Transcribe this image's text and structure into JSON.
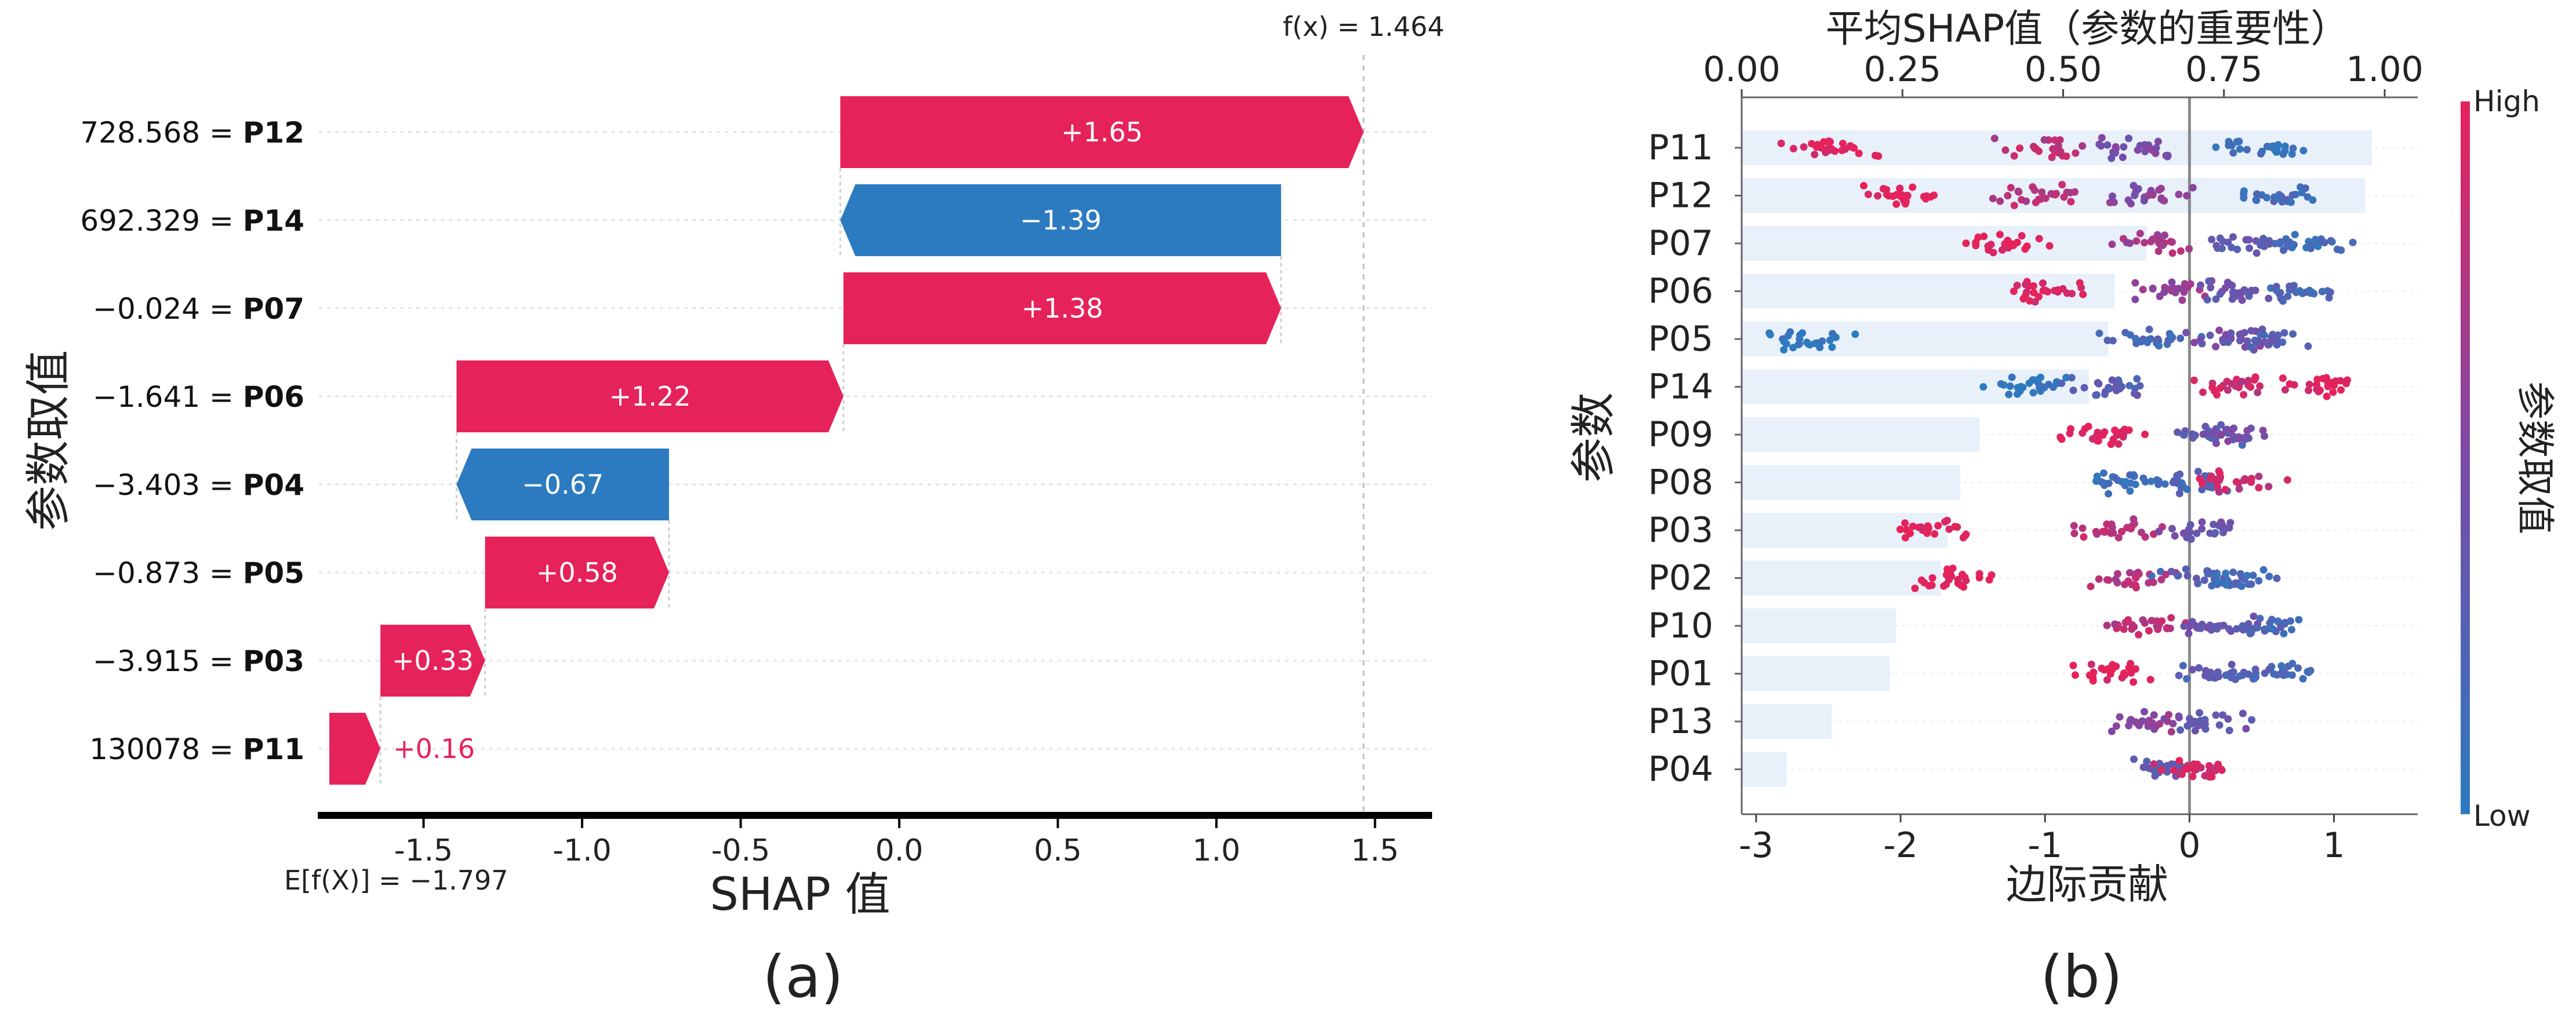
{
  "colors": {
    "positive": "#e6225a",
    "negative": "#2c7bc0",
    "base": "#9aa0a6"
  },
  "chart_data": [
    {
      "panel_label": "(a)",
      "type": "bar",
      "subtype": "waterfall",
      "fx_label": "f(x) = 1.464",
      "base_label": "E[f(X)] = −1.797",
      "xlabel": "SHAP 值",
      "ylabel": "参数取值",
      "xlim": [
        -1.83,
        1.68
      ],
      "xticks": [
        -1.5,
        -1.0,
        -0.5,
        0.0,
        0.5,
        1.0,
        1.5
      ],
      "xtick_labels": [
        "-1.5",
        "-1.0",
        "-0.5",
        "0.0",
        "0.5",
        "1.0",
        "1.5"
      ],
      "base_value": -1.797,
      "fx_value": 1.464,
      "bars": [
        {
          "value_text": "728.568",
          "feature": "P12",
          "contribution": 1.65,
          "start": -0.186,
          "end": 1.464,
          "label": "+1.65"
        },
        {
          "value_text": "692.329",
          "feature": "P14",
          "contribution": -1.39,
          "start": 1.204,
          "end": -0.186,
          "label": "−1.39"
        },
        {
          "value_text": "−0.024",
          "feature": "P07",
          "contribution": 1.38,
          "start": -0.176,
          "end": 1.204,
          "label": "+1.38"
        },
        {
          "value_text": "−1.641",
          "feature": "P06",
          "contribution": 1.22,
          "start": -1.396,
          "end": -0.176,
          "label": "+1.22"
        },
        {
          "value_text": "−3.403",
          "feature": "P04",
          "contribution": -0.67,
          "start": -0.726,
          "end": -1.396,
          "label": "−0.67"
        },
        {
          "value_text": "−0.873",
          "feature": "P05",
          "contribution": 0.58,
          "start": -1.306,
          "end": -0.726,
          "label": "+0.58"
        },
        {
          "value_text": "−3.915",
          "feature": "P03",
          "contribution": 0.33,
          "start": -1.636,
          "end": -1.306,
          "label": "+0.33"
        },
        {
          "value_text": "130078",
          "feature": "P11",
          "contribution": 0.16,
          "start": -1.797,
          "end": -1.636,
          "label": "+0.16"
        }
      ]
    },
    {
      "panel_label": "(b)",
      "type": "scatter",
      "subtype": "beeswarm with mean |SHAP| bars",
      "title": "平均SHAP值（参数的重要性）",
      "ylabel": "参数",
      "xlabel": "边际贡献",
      "colorbar_label": "参数取值",
      "colorbar_high": "High",
      "colorbar_low": "Low",
      "bottom_xlim": [
        -3.1,
        1.58
      ],
      "bottom_xticks": [
        "-3",
        "-2",
        "-1",
        "0",
        "1"
      ],
      "top_xlim": [
        0.0,
        1.0
      ],
      "top_xticks": [
        "0.00",
        "0.25",
        "0.50",
        "0.75",
        "1.00"
      ],
      "features": [
        "P11",
        "P12",
        "P07",
        "P06",
        "P05",
        "P14",
        "P09",
        "P08",
        "P03",
        "P02",
        "P10",
        "P01",
        "P13",
        "P04"
      ],
      "mean_abs_shap": [
        0.98,
        0.97,
        0.63,
        0.58,
        0.57,
        0.54,
        0.37,
        0.34,
        0.32,
        0.31,
        0.24,
        0.23,
        0.14,
        0.07
      ],
      "swarm_clusters": [
        [
          [
            -2.5,
            1
          ],
          [
            -1.0,
            0.8
          ],
          [
            -0.4,
            0.5
          ],
          [
            0.5,
            0.1
          ]
        ],
        [
          [
            -2.0,
            1
          ],
          [
            -1.0,
            0.8
          ],
          [
            -0.3,
            0.55
          ],
          [
            0.6,
            0.15
          ]
        ],
        [
          [
            -1.3,
            1
          ],
          [
            -0.2,
            0.7
          ],
          [
            0.35,
            0.3
          ],
          [
            0.8,
            0.15
          ]
        ],
        [
          [
            -1.0,
            1
          ],
          [
            -0.1,
            0.6
          ],
          [
            0.35,
            0.35
          ],
          [
            0.75,
            0.2
          ]
        ],
        [
          [
            -2.6,
            0
          ],
          [
            -0.3,
            0.2
          ],
          [
            0.3,
            0.45
          ],
          [
            0.55,
            0.3
          ]
        ],
        [
          [
            -1.1,
            0
          ],
          [
            -0.6,
            0.3
          ],
          [
            0.3,
            0.85
          ],
          [
            0.9,
            1
          ]
        ],
        [
          [
            -0.6,
            1
          ],
          [
            0.15,
            0.25
          ],
          [
            0.3,
            0.45
          ]
        ],
        [
          [
            -0.5,
            0.1
          ],
          [
            0.0,
            0.2
          ],
          [
            0.3,
            0.85
          ]
        ],
        [
          [
            -1.8,
            1
          ],
          [
            -0.5,
            0.8
          ],
          [
            0.1,
            0.4
          ]
        ],
        [
          [
            -1.7,
            1
          ],
          [
            -0.4,
            0.8
          ],
          [
            0.1,
            0.3
          ],
          [
            0.35,
            0.15
          ]
        ],
        [
          [
            -0.3,
            0.8
          ],
          [
            0.2,
            0.4
          ],
          [
            0.6,
            0.2
          ]
        ],
        [
          [
            -0.5,
            1
          ],
          [
            0.15,
            0.3
          ],
          [
            0.6,
            0.2
          ]
        ],
        [
          [
            -0.25,
            0.6
          ],
          [
            0.1,
            0.4
          ]
        ],
        [
          [
            -0.15,
            0.3
          ],
          [
            0.05,
            0.9
          ]
        ]
      ]
    }
  ]
}
